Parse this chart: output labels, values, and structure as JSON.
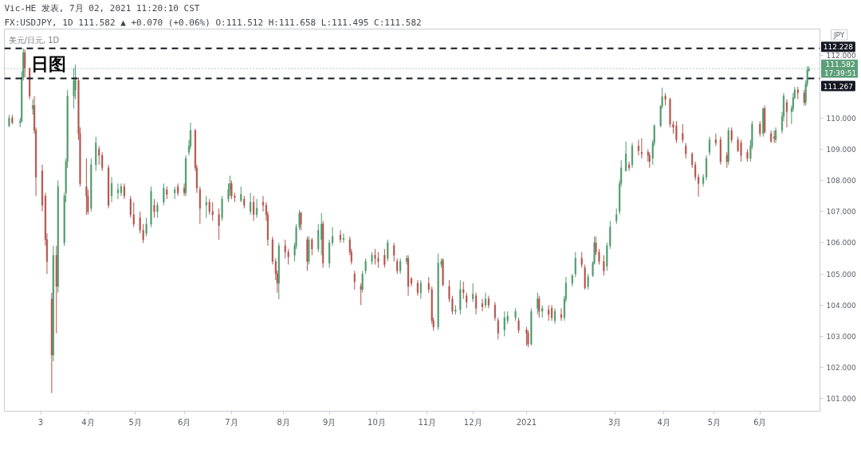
{
  "chart_data": {
    "type": "candlestick",
    "title": "Vic-HE 发表, 7月 02, 2021 11:20:10 CST",
    "subtitle": "FX:USDJPY, 1D 111.582 ▲ +0.070 (+0.06%) O:111.512 H:111.658 L:111.495 C:111.582",
    "ylabel": "JPY",
    "annotations": [
      "美元/日元, 1D",
      "日图"
    ],
    "xlim": [
      "2020-02-08",
      "2021-07-09"
    ],
    "xticks": [
      {
        "value": "2020-03-02",
        "label": "3"
      },
      {
        "value": "2020-04-01",
        "label": "4月"
      },
      {
        "value": "2020-05-01",
        "label": "5月"
      },
      {
        "value": "2020-06-01",
        "label": "6月"
      },
      {
        "value": "2020-07-01",
        "label": "7月"
      },
      {
        "value": "2020-08-03",
        "label": "8月"
      },
      {
        "value": "2020-09-01",
        "label": "9月"
      },
      {
        "value": "2020-10-01",
        "label": "10月"
      },
      {
        "value": "2020-11-02",
        "label": "11月"
      },
      {
        "value": "2020-12-01",
        "label": "12月"
      },
      {
        "value": "2021-01-04",
        "label": "2021"
      },
      {
        "value": "2021-03-01",
        "label": "3月"
      },
      {
        "value": "2021-04-01",
        "label": "4月"
      },
      {
        "value": "2021-05-03",
        "label": "5月"
      },
      {
        "value": "2021-06-01",
        "label": "6月"
      }
    ],
    "ylim": [
      100.6,
      112.85
    ],
    "yticks": [
      {
        "value": 101,
        "label": "101.000"
      },
      {
        "value": 102,
        "label": "102.000"
      },
      {
        "value": 103,
        "label": "103.000"
      },
      {
        "value": 104,
        "label": "104.000"
      },
      {
        "value": 105,
        "label": "105.000"
      },
      {
        "value": 106,
        "label": "106.000"
      },
      {
        "value": 107,
        "label": "107.000"
      },
      {
        "value": 108,
        "label": "108.000"
      },
      {
        "value": 109,
        "label": "109.000"
      },
      {
        "value": 110,
        "label": "110.000"
      },
      {
        "value": 112,
        "label": "112.000"
      }
    ],
    "ref_lines": [
      {
        "axis": "y",
        "value": 112.228,
        "label": "112.228",
        "color": "#131722",
        "line_style": "dashed"
      },
      {
        "axis": "y",
        "value": 111.582,
        "label": "111.582\n17:39:51",
        "color": "#5b9f78",
        "line_style": "dotted"
      },
      {
        "axis": "y",
        "value": 111.267,
        "label": "111.267",
        "color": "#131722",
        "line_style": "dashed"
      }
    ],
    "x": [
      "2020-02-11",
      "2020-02-13",
      "2020-02-18",
      "2020-02-19",
      "2020-02-20",
      "2020-02-21",
      "2020-02-24",
      "2020-02-26",
      "2020-02-27",
      "2020-02-28",
      "2020-03-03",
      "2020-03-05",
      "2020-03-06",
      "2020-03-09",
      "2020-03-10",
      "2020-03-12",
      "2020-03-13",
      "2020-03-17",
      "2020-03-18",
      "2020-03-19",
      "2020-03-23",
      "2020-03-24",
      "2020-03-26",
      "2020-03-27",
      "2020-03-31",
      "2020-04-01",
      "2020-04-03",
      "2020-04-06",
      "2020-04-08",
      "2020-04-10",
      "2020-04-14",
      "2020-04-16",
      "2020-04-20",
      "2020-04-22",
      "2020-04-24",
      "2020-04-28",
      "2020-04-30",
      "2020-05-04",
      "2020-05-06",
      "2020-05-08",
      "2020-05-11",
      "2020-05-13",
      "2020-05-15",
      "2020-05-19",
      "2020-05-21",
      "2020-05-26",
      "2020-05-28",
      "2020-06-01",
      "2020-06-02",
      "2020-06-04",
      "2020-06-05",
      "2020-06-08",
      "2020-06-09",
      "2020-06-11",
      "2020-06-15",
      "2020-06-17",
      "2020-06-19",
      "2020-06-23",
      "2020-06-25",
      "2020-06-29",
      "2020-06-30",
      "2020-07-01",
      "2020-07-03",
      "2020-07-07",
      "2020-07-09",
      "2020-07-13",
      "2020-07-15",
      "2020-07-17",
      "2020-07-21",
      "2020-07-23",
      "2020-07-24",
      "2020-07-27",
      "2020-07-29",
      "2020-07-30",
      "2020-07-31",
      "2020-08-04",
      "2020-08-06",
      "2020-08-10",
      "2020-08-11",
      "2020-08-13",
      "2020-08-14",
      "2020-08-18",
      "2020-08-19",
      "2020-08-21",
      "2020-08-25",
      "2020-08-27",
      "2020-08-28",
      "2020-09-01",
      "2020-09-03",
      "2020-09-08",
      "2020-09-10",
      "2020-09-14",
      "2020-09-15",
      "2020-09-17",
      "2020-09-21",
      "2020-09-22",
      "2020-09-24",
      "2020-09-28",
      "2020-09-30",
      "2020-10-02",
      "2020-10-06",
      "2020-10-08",
      "2020-10-12",
      "2020-10-14",
      "2020-10-16",
      "2020-10-20",
      "2020-10-21",
      "2020-10-23",
      "2020-10-27",
      "2020-10-29",
      "2020-11-03",
      "2020-11-05",
      "2020-11-06",
      "2020-11-09",
      "2020-11-11",
      "2020-11-12",
      "2020-11-16",
      "2020-11-18",
      "2020-11-20",
      "2020-11-23",
      "2020-11-25",
      "2020-11-27",
      "2020-12-01",
      "2020-12-03",
      "2020-12-07",
      "2020-12-09",
      "2020-12-11",
      "2020-12-15",
      "2020-12-17",
      "2020-12-21",
      "2020-12-23",
      "2020-12-28",
      "2020-12-30",
      "2021-01-04",
      "2021-01-05",
      "2021-01-07",
      "2021-01-11",
      "2021-01-12",
      "2021-01-14",
      "2021-01-18",
      "2021-01-20",
      "2021-01-22",
      "2021-01-26",
      "2021-01-28",
      "2021-01-29",
      "2021-02-02",
      "2021-02-04",
      "2021-02-08",
      "2021-02-10",
      "2021-02-12",
      "2021-02-15",
      "2021-02-16",
      "2021-02-17",
      "2021-02-19",
      "2021-02-22",
      "2021-02-24",
      "2021-02-26",
      "2021-03-02",
      "2021-03-04",
      "2021-03-05",
      "2021-03-08",
      "2021-03-10",
      "2021-03-12",
      "2021-03-16",
      "2021-03-18",
      "2021-03-22",
      "2021-03-23",
      "2021-03-25",
      "2021-03-26",
      "2021-03-30",
      "2021-03-31",
      "2021-04-02",
      "2021-04-05",
      "2021-04-07",
      "2021-04-09",
      "2021-04-13",
      "2021-04-15",
      "2021-04-19",
      "2021-04-21",
      "2021-04-23",
      "2021-04-26",
      "2021-04-28",
      "2021-04-30",
      "2021-05-04",
      "2021-05-07",
      "2021-05-11",
      "2021-05-12",
      "2021-05-14",
      "2021-05-18",
      "2021-05-20",
      "2021-05-24",
      "2021-05-26",
      "2021-05-27",
      "2021-06-01",
      "2021-06-03",
      "2021-06-04",
      "2021-06-08",
      "2021-06-10",
      "2021-06-11",
      "2021-06-15",
      "2021-06-16",
      "2021-06-18",
      "2021-06-21",
      "2021-06-22",
      "2021-06-23",
      "2021-06-25",
      "2021-06-29",
      "2021-06-30",
      "2021-07-01",
      "2021-07-02"
    ],
    "ohlc": [
      [
        109.75,
        110.1,
        109.7,
        110.0
      ],
      [
        110.0,
        110.1,
        109.8,
        109.85
      ],
      [
        109.85,
        110.0,
        109.7,
        109.9
      ],
      [
        109.9,
        111.5,
        109.85,
        111.3
      ],
      [
        111.3,
        112.228,
        111.2,
        112.1
      ],
      [
        112.1,
        112.2,
        111.3,
        111.6
      ],
      [
        111.6,
        111.6,
        110.6,
        110.7
      ],
      [
        110.3,
        110.6,
        110.1,
        110.4
      ],
      [
        110.4,
        110.7,
        109.5,
        109.6
      ],
      [
        109.6,
        109.7,
        107.5,
        108.1
      ],
      [
        108.3,
        108.5,
        107.0,
        107.2
      ],
      [
        107.5,
        107.6,
        105.9,
        106.1
      ],
      [
        106.1,
        106.3,
        105.0,
        105.4
      ],
      [
        104.2,
        104.4,
        101.18,
        102.4
      ],
      [
        102.4,
        105.9,
        102.2,
        105.6
      ],
      [
        105.6,
        105.9,
        103.1,
        104.6
      ],
      [
        104.6,
        108.0,
        104.4,
        107.8
      ],
      [
        106.0,
        107.6,
        105.9,
        107.5
      ],
      [
        107.6,
        108.7,
        107.3,
        108.6
      ],
      [
        108.6,
        110.9,
        108.4,
        110.7
      ],
      [
        110.7,
        111.6,
        110.3,
        111.2
      ],
      [
        110.9,
        111.71,
        110.6,
        111.25
      ],
      [
        111.2,
        111.3,
        109.3,
        109.5
      ],
      [
        109.5,
        109.7,
        107.8,
        107.9
      ],
      [
        107.8,
        108.7,
        106.9,
        107.5
      ],
      [
        107.5,
        107.7,
        106.9,
        107.0
      ],
      [
        107.1,
        108.7,
        107.0,
        108.5
      ],
      [
        108.5,
        109.4,
        108.3,
        109.2
      ],
      [
        109.0,
        109.1,
        108.5,
        108.8
      ],
      [
        108.8,
        108.9,
        108.3,
        108.4
      ],
      [
        108.4,
        108.5,
        107.1,
        107.2
      ],
      [
        107.5,
        108.1,
        107.3,
        107.9
      ],
      [
        107.6,
        107.9,
        107.4,
        107.7
      ],
      [
        107.6,
        107.9,
        107.5,
        107.8
      ],
      [
        107.8,
        107.9,
        107.4,
        107.5
      ],
      [
        107.4,
        107.5,
        106.8,
        106.9
      ],
      [
        106.9,
        107.3,
        106.5,
        106.6
      ],
      [
        106.8,
        107.0,
        106.3,
        106.4
      ],
      [
        106.4,
        106.6,
        105.99,
        106.1
      ],
      [
        106.3,
        106.8,
        106.2,
        106.6
      ],
      [
        106.6,
        107.8,
        106.5,
        107.65
      ],
      [
        107.2,
        107.4,
        106.8,
        107.0
      ],
      [
        107.0,
        107.3,
        106.8,
        107.2
      ],
      [
        107.3,
        107.9,
        107.2,
        107.75
      ],
      [
        107.7,
        107.8,
        107.4,
        107.55
      ],
      [
        107.6,
        107.8,
        107.4,
        107.7
      ],
      [
        107.8,
        107.9,
        107.5,
        107.6
      ],
      [
        107.75,
        107.9,
        107.5,
        107.6
      ],
      [
        107.6,
        108.8,
        107.5,
        108.7
      ],
      [
        108.9,
        109.3,
        108.8,
        109.1
      ],
      [
        109.1,
        109.85,
        109.0,
        109.6
      ],
      [
        109.6,
        109.65,
        108.3,
        108.4
      ],
      [
        108.4,
        108.5,
        107.6,
        107.75
      ],
      [
        107.7,
        107.8,
        106.6,
        107.1
      ],
      [
        107.2,
        107.5,
        106.8,
        107.3
      ],
      [
        107.3,
        107.4,
        106.9,
        107.0
      ],
      [
        107.0,
        107.3,
        106.7,
        106.9
      ],
      [
        106.9,
        107.1,
        106.1,
        106.55
      ],
      [
        106.8,
        107.5,
        106.7,
        107.4
      ],
      [
        107.4,
        107.9,
        107.3,
        107.7
      ],
      [
        107.7,
        108.15,
        107.5,
        107.9
      ],
      [
        107.9,
        108.0,
        107.4,
        107.5
      ],
      [
        107.5,
        107.6,
        107.3,
        107.45
      ],
      [
        107.35,
        107.8,
        107.3,
        107.55
      ],
      [
        107.4,
        107.5,
        107.1,
        107.2
      ],
      [
        107.0,
        107.6,
        106.9,
        107.3
      ],
      [
        107.3,
        107.5,
        106.7,
        106.9
      ],
      [
        106.9,
        107.4,
        106.8,
        107.1
      ],
      [
        107.3,
        107.5,
        107.0,
        107.2
      ],
      [
        107.2,
        107.3,
        106.7,
        106.9
      ],
      [
        106.9,
        107.0,
        105.9,
        106.1
      ],
      [
        106.1,
        106.2,
        105.3,
        105.4
      ],
      [
        105.4,
        105.5,
        104.8,
        105.0
      ],
      [
        105.0,
        105.1,
        104.4,
        104.7
      ],
      [
        104.7,
        106.0,
        104.19,
        105.9
      ],
      [
        105.9,
        106.1,
        105.5,
        105.7
      ],
      [
        105.7,
        105.8,
        105.3,
        105.55
      ],
      [
        105.6,
        106.0,
        105.4,
        105.9
      ],
      [
        105.9,
        106.6,
        105.8,
        106.5
      ],
      [
        106.5,
        107.05,
        106.4,
        106.95
      ],
      [
        106.95,
        107.0,
        106.4,
        106.6
      ],
      [
        106.1,
        106.2,
        105.1,
        105.4
      ],
      [
        105.4,
        106.2,
        105.3,
        106.1
      ],
      [
        106.1,
        106.15,
        105.6,
        105.8
      ],
      [
        105.8,
        106.6,
        105.7,
        106.4
      ],
      [
        106.1,
        106.95,
        105.6,
        106.6
      ],
      [
        106.6,
        106.7,
        105.2,
        105.35
      ],
      [
        105.35,
        106.1,
        105.2,
        106.0
      ],
      [
        106.0,
        106.5,
        105.9,
        106.2
      ],
      [
        106.25,
        106.4,
        106.0,
        106.1
      ],
      [
        106.1,
        106.3,
        106.0,
        106.15
      ],
      [
        106.1,
        106.2,
        105.6,
        105.7
      ],
      [
        105.7,
        105.8,
        105.3,
        105.4
      ],
      [
        105.0,
        105.1,
        104.5,
        104.75
      ],
      [
        104.6,
        104.7,
        104.0,
        104.5
      ],
      [
        104.5,
        105.1,
        104.4,
        105.0
      ],
      [
        105.1,
        105.5,
        105.0,
        105.4
      ],
      [
        105.4,
        105.7,
        105.3,
        105.6
      ],
      [
        105.6,
        105.8,
        105.3,
        105.5
      ],
      [
        105.5,
        105.7,
        105.2,
        105.4
      ],
      [
        105.6,
        105.8,
        105.2,
        105.3
      ],
      [
        105.5,
        106.1,
        105.4,
        106.0
      ],
      [
        105.9,
        106.0,
        105.4,
        105.6
      ],
      [
        105.4,
        105.5,
        105.0,
        105.1
      ],
      [
        105.1,
        105.5,
        105.0,
        105.4
      ],
      [
        105.4,
        105.6,
        105.3,
        105.5
      ],
      [
        105.5,
        105.6,
        104.3,
        104.6
      ],
      [
        104.85,
        104.9,
        104.6,
        104.7
      ],
      [
        104.7,
        104.8,
        104.3,
        104.4
      ],
      [
        104.4,
        104.8,
        104.2,
        104.7
      ],
      [
        104.7,
        104.9,
        104.4,
        104.5
      ],
      [
        104.5,
        104.6,
        103.4,
        103.5
      ],
      [
        103.5,
        103.6,
        103.18,
        103.3
      ],
      [
        103.3,
        105.65,
        103.2,
        105.35
      ],
      [
        105.3,
        105.5,
        105.2,
        105.4
      ],
      [
        105.45,
        105.5,
        104.6,
        104.65
      ],
      [
        104.6,
        104.8,
        104.1,
        104.2
      ],
      [
        104.2,
        104.3,
        103.7,
        103.8
      ],
      [
        103.8,
        104.0,
        103.7,
        103.85
      ],
      [
        103.85,
        104.8,
        103.7,
        104.5
      ],
      [
        104.5,
        104.75,
        104.2,
        104.4
      ],
      [
        104.3,
        104.4,
        103.9,
        104.1
      ],
      [
        104.2,
        104.7,
        104.1,
        104.35
      ],
      [
        104.3,
        104.4,
        103.7,
        103.9
      ],
      [
        104.05,
        104.2,
        103.8,
        103.95
      ],
      [
        104.0,
        104.4,
        103.9,
        104.2
      ],
      [
        104.2,
        104.3,
        103.9,
        104.0
      ],
      [
        104.0,
        104.1,
        103.5,
        103.6
      ],
      [
        103.5,
        103.6,
        102.9,
        103.1
      ],
      [
        103.2,
        103.8,
        103.0,
        103.6
      ],
      [
        103.5,
        103.8,
        103.4,
        103.65
      ],
      [
        103.6,
        103.9,
        103.5,
        103.8
      ],
      [
        103.5,
        103.6,
        103.1,
        103.2
      ],
      [
        103.2,
        103.3,
        102.7,
        103.1
      ],
      [
        103.1,
        103.2,
        102.65,
        102.75
      ],
      [
        102.75,
        103.9,
        102.7,
        103.8
      ],
      [
        103.9,
        104.4,
        103.7,
        104.2
      ],
      [
        104.2,
        104.3,
        103.6,
        103.8
      ],
      [
        103.8,
        104.0,
        103.6,
        103.9
      ],
      [
        103.85,
        104.0,
        103.5,
        103.7
      ],
      [
        103.9,
        104.0,
        103.5,
        103.6
      ],
      [
        103.5,
        103.9,
        103.4,
        103.8
      ],
      [
        103.7,
        103.9,
        103.5,
        103.6
      ],
      [
        103.6,
        104.3,
        103.5,
        104.2
      ],
      [
        104.2,
        104.9,
        104.1,
        104.7
      ],
      [
        104.7,
        105.0,
        104.6,
        104.95
      ],
      [
        105.0,
        105.7,
        104.9,
        105.5
      ],
      [
        105.5,
        105.7,
        105.2,
        105.3
      ],
      [
        105.2,
        105.3,
        104.5,
        104.55
      ],
      [
        104.6,
        105.0,
        104.5,
        104.9
      ],
      [
        104.95,
        105.4,
        104.9,
        105.35
      ],
      [
        105.35,
        106.2,
        105.3,
        106.0
      ],
      [
        106.0,
        106.2,
        105.6,
        105.7
      ],
      [
        105.7,
        105.8,
        105.3,
        105.4
      ],
      [
        105.4,
        105.6,
        104.95,
        105.1
      ],
      [
        105.25,
        106.0,
        105.1,
        105.9
      ],
      [
        105.9,
        106.7,
        105.8,
        106.5
      ],
      [
        106.7,
        107.1,
        106.6,
        106.9
      ],
      [
        107.0,
        108.0,
        106.9,
        107.9
      ],
      [
        107.9,
        108.65,
        107.8,
        108.4
      ],
      [
        108.3,
        109.25,
        108.3,
        108.85
      ],
      [
        108.5,
        108.6,
        108.3,
        108.4
      ],
      [
        108.5,
        109.2,
        108.4,
        109.1
      ],
      [
        109.1,
        109.3,
        108.8,
        108.95
      ],
      [
        108.9,
        109.35,
        108.7,
        108.85
      ],
      [
        108.9,
        109.0,
        108.6,
        108.8
      ],
      [
        108.8,
        108.9,
        108.4,
        108.6
      ],
      [
        108.7,
        109.3,
        108.5,
        109.2
      ],
      [
        109.2,
        109.8,
        109.1,
        109.75
      ],
      [
        109.75,
        110.4,
        109.7,
        110.38
      ],
      [
        110.38,
        110.97,
        110.3,
        110.68
      ],
      [
        110.7,
        110.8,
        110.4,
        110.6
      ],
      [
        110.6,
        110.65,
        109.7,
        109.8
      ],
      [
        109.8,
        109.9,
        109.5,
        109.7
      ],
      [
        109.75,
        109.9,
        109.2,
        109.3
      ],
      [
        109.5,
        109.8,
        109.2,
        109.3
      ],
      [
        109.1,
        109.2,
        108.7,
        108.85
      ],
      [
        108.85,
        108.9,
        108.4,
        108.5
      ],
      [
        108.5,
        108.6,
        108.0,
        108.1
      ],
      [
        108.1,
        108.2,
        107.48,
        107.9
      ],
      [
        107.9,
        108.2,
        107.8,
        108.1
      ],
      [
        108.1,
        108.8,
        108.0,
        108.7
      ],
      [
        108.9,
        109.4,
        108.8,
        109.3
      ],
      [
        109.3,
        109.5,
        109.1,
        109.2
      ],
      [
        109.3,
        109.4,
        108.5,
        108.6
      ],
      [
        108.8,
        108.9,
        108.4,
        108.6
      ],
      [
        108.6,
        109.7,
        108.5,
        109.6
      ],
      [
        109.6,
        109.7,
        109.2,
        109.3
      ],
      [
        109.3,
        109.4,
        108.9,
        108.95
      ],
      [
        109.2,
        109.3,
        108.6,
        108.8
      ],
      [
        108.9,
        109.0,
        108.6,
        108.7
      ],
      [
        108.7,
        109.3,
        108.6,
        109.1
      ],
      [
        109.1,
        109.9,
        109.0,
        109.8
      ],
      [
        109.8,
        109.9,
        109.4,
        109.5
      ],
      [
        109.5,
        110.33,
        109.4,
        110.3
      ],
      [
        110.3,
        110.4,
        109.5,
        109.55
      ],
      [
        109.5,
        109.6,
        109.2,
        109.25
      ],
      [
        109.4,
        109.6,
        109.2,
        109.35
      ],
      [
        109.3,
        109.7,
        109.2,
        109.6
      ],
      [
        109.6,
        110.2,
        109.5,
        110.05
      ],
      [
        110.05,
        110.8,
        109.9,
        110.7
      ],
      [
        110.5,
        110.6,
        109.7,
        110.2
      ],
      [
        110.2,
        110.4,
        109.8,
        110.3
      ],
      [
        110.3,
        110.8,
        110.2,
        110.65
      ],
      [
        110.65,
        111.0,
        110.6,
        110.9
      ],
      [
        110.9,
        111.0,
        110.6,
        110.8
      ],
      [
        110.8,
        110.9,
        110.4,
        110.5
      ],
      [
        110.5,
        111.2,
        110.4,
        111.1
      ],
      [
        111.1,
        111.66,
        111.0,
        111.53
      ],
      [
        111.512,
        111.658,
        111.495,
        111.582
      ]
    ],
    "colors": [
      "#4e9a6b",
      "#b4524a",
      "#4e9a6b",
      "#4e9a6b",
      "#4e9a6b",
      "#b4524a",
      "#b4524a",
      "#4e9a6b",
      "#b4524a",
      "#b4524a",
      "#b4524a",
      "#b4524a",
      "#b4524a",
      "#b4524a",
      "#4e9a6b",
      "#b4524a",
      "#4e9a6b",
      "#4e9a6b",
      "#4e9a6b",
      "#4e9a6b",
      "#4e9a6b",
      "#4e9a6b",
      "#b4524a",
      "#b4524a",
      "#b4524a",
      "#b4524a",
      "#4e9a6b",
      "#4e9a6b",
      "#b4524a",
      "#b4524a",
      "#b4524a",
      "#4e9a6b",
      "#4e9a6b",
      "#4e9a6b",
      "#b4524a",
      "#b4524a",
      "#b4524a",
      "#b4524a",
      "#b4524a",
      "#4e9a6b",
      "#4e9a6b",
      "#b4524a",
      "#4e9a6b",
      "#4e9a6b",
      "#b4524a",
      "#4e9a6b",
      "#b4524a",
      "#b4524a",
      "#4e9a6b",
      "#4e9a6b",
      "#4e9a6b",
      "#b4524a",
      "#b4524a",
      "#b4524a",
      "#4e9a6b",
      "#b4524a",
      "#b4524a",
      "#b4524a",
      "#4e9a6b",
      "#4e9a6b",
      "#4e9a6b",
      "#b4524a",
      "#b4524a",
      "#4e9a6b",
      "#b4524a",
      "#4e9a6b",
      "#b4524a",
      "#4e9a6b",
      "#b4524a",
      "#b4524a",
      "#b4524a",
      "#b4524a",
      "#b4524a",
      "#b4524a",
      "#4e9a6b",
      "#b4524a",
      "#b4524a",
      "#4e9a6b",
      "#4e9a6b",
      "#4e9a6b",
      "#b4524a",
      "#b4524a",
      "#4e9a6b",
      "#b4524a",
      "#4e9a6b",
      "#4e9a6b",
      "#b4524a",
      "#4e9a6b",
      "#4e9a6b",
      "#b4524a",
      "#4e9a6b",
      "#b4524a",
      "#b4524a",
      "#b4524a",
      "#b4524a",
      "#4e9a6b",
      "#4e9a6b",
      "#4e9a6b",
      "#b4524a",
      "#b4524a",
      "#b4524a",
      "#4e9a6b",
      "#b4524a",
      "#b4524a",
      "#4e9a6b",
      "#4e9a6b",
      "#b4524a",
      "#b4524a",
      "#b4524a",
      "#4e9a6b",
      "#b4524a",
      "#b4524a",
      "#b4524a",
      "#4e9a6b",
      "#4e9a6b",
      "#b4524a",
      "#b4524a",
      "#b4524a",
      "#4e9a6b",
      "#4e9a6b",
      "#b4524a",
      "#b4524a",
      "#4e9a6b",
      "#b4524a",
      "#b4524a",
      "#4e9a6b",
      "#b4524a",
      "#b4524a",
      "#b4524a",
      "#4e9a6b",
      "#4e9a6b",
      "#4e9a6b",
      "#b4524a",
      "#b4524a",
      "#b4524a",
      "#4e9a6b",
      "#4e9a6b",
      "#b4524a",
      "#4e9a6b",
      "#b4524a",
      "#b4524a",
      "#4e9a6b",
      "#b4524a",
      "#4e9a6b",
      "#4e9a6b",
      "#4e9a6b",
      "#4e9a6b",
      "#b4524a",
      "#b4524a",
      "#4e9a6b",
      "#4e9a6b",
      "#4e9a6b",
      "#b4524a",
      "#b4524a",
      "#b4524a",
      "#4e9a6b",
      "#4e9a6b",
      "#4e9a6b",
      "#4e9a6b",
      "#4e9a6b",
      "#4e9a6b",
      "#b4524a",
      "#4e9a6b",
      "#b4524a",
      "#b4524a",
      "#b4524a",
      "#b4524a",
      "#4e9a6b",
      "#4e9a6b",
      "#4e9a6b",
      "#4e9a6b",
      "#b4524a",
      "#b4524a",
      "#b4524a",
      "#b4524a",
      "#b4524a",
      "#b4524a",
      "#b4524a",
      "#b4524a",
      "#b4524a",
      "#4e9a6b",
      "#4e9a6b",
      "#4e9a6b",
      "#b4524a",
      "#b4524a",
      "#b4524a",
      "#4e9a6b",
      "#b4524a",
      "#b4524a",
      "#b4524a",
      "#b4524a",
      "#4e9a6b",
      "#4e9a6b",
      "#b4524a",
      "#4e9a6b",
      "#b4524a",
      "#b4524a",
      "#b4524a",
      "#4e9a6b",
      "#4e9a6b",
      "#4e9a6b",
      "#b4524a",
      "#4e9a6b",
      "#4e9a6b",
      "#4e9a6b",
      "#b4524a",
      "#b4524a",
      "#4e9a6b",
      "#4e9a6b",
      "#4e9a6b"
    ]
  }
}
